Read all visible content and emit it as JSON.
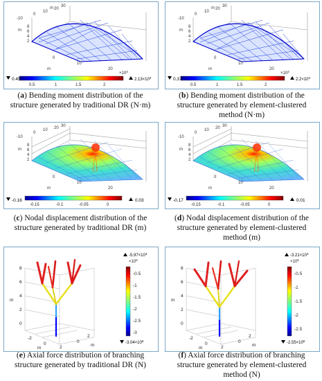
{
  "panels": {
    "a": {
      "letter": "a",
      "caption": "Bending moment distribution of the structure generated by traditional DR (N·m)",
      "cap_lines": [
        "Bending moment distribution of the",
        "structure generated by traditional DR (N·m)"
      ],
      "axis_ticks_top": [
        "-10",
        "0",
        "10",
        "20",
        "30"
      ],
      "axis_ticks_z": [
        "8",
        "6",
        "4",
        "2"
      ],
      "axis_ticks_bottom": [
        "0",
        "10",
        "20"
      ],
      "axis_unit": "m",
      "min_label": "0.45",
      "max_label": "2.13×10",
      "max_exp": "4",
      "exp_label": "×10",
      "exp_sup": "4",
      "cb_ticks": [
        "0.5",
        "1",
        "1.5",
        "2"
      ]
    },
    "b": {
      "letter": "b",
      "cap_lines": [
        "Bending moment distribution of the",
        "structure generated by element-clustered",
        "method (N·m)"
      ],
      "axis_ticks_top": [
        "-10",
        "0",
        "10",
        "20",
        "30"
      ],
      "axis_ticks_z": [
        "8",
        "6",
        "4",
        "2"
      ],
      "axis_ticks_bottom": [
        "0",
        "10",
        "20"
      ],
      "axis_unit": "m",
      "min_label": "0.37",
      "max_label": "2.2×10",
      "max_exp": "4",
      "exp_label": "×10",
      "exp_sup": "4",
      "cb_ticks": [
        "0.5",
        "1",
        "1.5",
        "2"
      ]
    },
    "c": {
      "letter": "c",
      "cap_lines": [
        "Nodal displacement distribution of the",
        "structure generated by traditional DR (m)"
      ],
      "axis_ticks_top": [
        "-10",
        "0",
        "10",
        "20",
        "30"
      ],
      "axis_ticks_z": [
        "8",
        "6",
        "4",
        "2"
      ],
      "axis_ticks_bottom": [
        "0",
        "10",
        "20"
      ],
      "axis_unit": "m",
      "min_label": "-0.16",
      "max_label": "0.03",
      "cb_ticks": [
        "-0.15",
        "-0.1",
        "-0.05",
        "0"
      ]
    },
    "d": {
      "letter": "d",
      "cap_lines": [
        "Nodal displacement distribution of the",
        "structure generated by element-clustered",
        "method (m)"
      ],
      "axis_ticks_top": [
        "-10",
        "0",
        "10",
        "20",
        "30"
      ],
      "axis_ticks_z": [
        "8",
        "6",
        "4",
        "2"
      ],
      "axis_ticks_bottom": [
        "0",
        "10",
        "20"
      ],
      "axis_unit": "m",
      "min_label": "-0.17",
      "max_label": "0.01",
      "cb_ticks": [
        "-0.15",
        "-0.1",
        "-0.05",
        "0"
      ]
    },
    "e": {
      "letter": "e",
      "cap_lines": [
        "Axial force distribution of branching",
        "structure generated by traditional DR (N)"
      ],
      "z_ticks": [
        "8",
        "6",
        "4",
        "2",
        "0"
      ],
      "x_ticks": [
        "-2",
        "0",
        "2"
      ],
      "y_ticks": [
        "0",
        "2"
      ],
      "axis_unit": "m",
      "max_label": "-5.97×10",
      "max_exp": "3",
      "min_label": "-3.04×10",
      "min_exp": "5",
      "exp_label": "×10",
      "exp_sup": "5",
      "cb_ticks": [
        "-0.5",
        "-1",
        "-1.5",
        "-2",
        "-2.5",
        "-3"
      ]
    },
    "f": {
      "letter": "f",
      "cap_lines": [
        "Axial force distribution of branching",
        "structure generated by element-clustered",
        "method (N)"
      ],
      "z_ticks": [
        "8",
        "6",
        "4",
        "2",
        "0"
      ],
      "x_ticks": [
        "-2",
        "0",
        "2"
      ],
      "y_ticks": [
        "0",
        "2"
      ],
      "axis_unit": "m",
      "max_label": "-3.21×10",
      "max_exp": "4",
      "min_label": "-2.55×10",
      "min_exp": "5",
      "exp_label": "×10",
      "exp_sup": "5",
      "cb_ticks": [
        "-0.5",
        "-1",
        "-1.5",
        "-2",
        "-2.5"
      ]
    }
  },
  "colors": {
    "jet": [
      "#00008f",
      "#0000ff",
      "#0080ff",
      "#00ffff",
      "#80ff80",
      "#ffff00",
      "#ff8000",
      "#ff0000",
      "#800000"
    ],
    "panel_border": "#7aa7c7",
    "mesh_blue": "#1f3fe0"
  }
}
